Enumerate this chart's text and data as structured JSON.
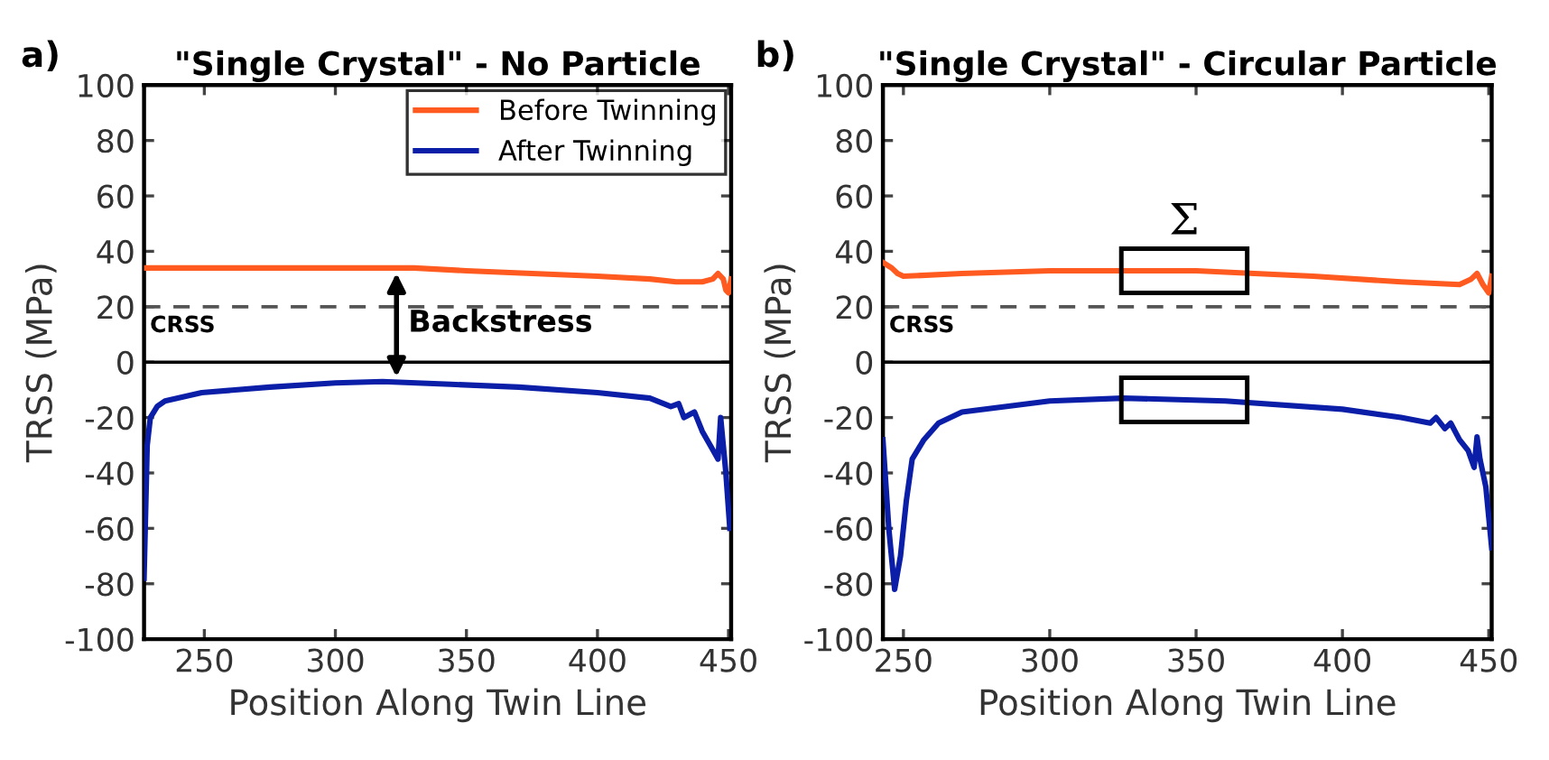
{
  "chart_data": [
    {
      "type": "line",
      "title": "\"Single Crystal\" - No Particle",
      "xlabel": "Position Along Twin Line",
      "ylabel": "TRSS (MPa)",
      "xlim": [
        227,
        451
      ],
      "xticks": [
        250,
        300,
        350,
        400,
        450
      ],
      "ylim": [
        -100,
        100
      ],
      "yticks": [
        -100,
        -80,
        -60,
        -40,
        -20,
        0,
        20,
        40,
        60,
        80,
        100
      ],
      "grid": false,
      "legend": "top right",
      "line_style": "solid",
      "marker": "none",
      "ref_lines": [
        {
          "axis": "y",
          "value": 20,
          "label": "CRSS",
          "color": "#555555",
          "line_style": "dashed"
        },
        {
          "axis": "y",
          "value": 0,
          "color": "#000000",
          "line_style": "solid"
        }
      ],
      "annotations": [
        "a)",
        "Backstress"
      ],
      "series": [
        {
          "name": "Before Twinning",
          "color": "#ff5a1f",
          "x": [
            227,
            240,
            270,
            300,
            330,
            350,
            375,
            400,
            420,
            430,
            440,
            444,
            446,
            448,
            449,
            450,
            451
          ],
          "values": [
            34,
            34,
            34,
            34,
            34,
            33,
            32,
            31,
            30,
            29,
            29,
            30,
            32,
            30,
            26,
            25,
            30
          ]
        },
        {
          "name": "After Twinning",
          "color": "#0b1ea8",
          "x": [
            227,
            228.2,
            229.4,
            232,
            235,
            249,
            275,
            300,
            318,
            344,
            370,
            400,
            420,
            428,
            431,
            433,
            437,
            440,
            443,
            446,
            447,
            448,
            449,
            450.5
          ],
          "values": [
            -78,
            -30,
            -20,
            -16,
            -14,
            -11,
            -9,
            -7.5,
            -7,
            -8,
            -9,
            -11,
            -13,
            -16,
            -15,
            -20,
            -18,
            -25,
            -30,
            -35,
            -20,
            -30,
            -40,
            -60
          ]
        }
      ]
    },
    {
      "type": "line",
      "title": "\"Single Crystal\" - Circular Particle",
      "xlabel": "Position Along Twin Line",
      "ylabel": "TRSS (MPa)",
      "xlim": [
        243,
        451
      ],
      "xticks": [
        250,
        300,
        350,
        400,
        450
      ],
      "ylim": [
        -100,
        100
      ],
      "yticks": [
        -100,
        -80,
        -60,
        -40,
        -20,
        0,
        20,
        40,
        60,
        80,
        100
      ],
      "grid": false,
      "line_style": "solid",
      "marker": "none",
      "ref_lines": [
        {
          "axis": "y",
          "value": 20,
          "label": "CRSS",
          "color": "#555555",
          "line_style": "dashed"
        },
        {
          "axis": "y",
          "value": 0,
          "color": "#000000",
          "line_style": "solid"
        }
      ],
      "annotations": [
        "b)",
        "Σ"
      ],
      "series": [
        {
          "color": "#ff5a1f",
          "x": [
            243,
            246,
            248,
            250,
            270,
            300,
            320,
            350,
            370,
            390,
            420,
            440,
            444,
            446,
            448,
            450,
            451
          ],
          "values": [
            36,
            34,
            32,
            31,
            32,
            33,
            33,
            33,
            32,
            31,
            29,
            28,
            30,
            32,
            28,
            25,
            31
          ]
        },
        {
          "color": "#0b1ea8",
          "x": [
            243,
            245,
            247,
            249,
            251,
            253,
            257,
            262,
            270,
            300,
            325,
            360,
            400,
            420,
            430,
            432,
            435,
            437,
            440,
            443,
            445,
            446,
            447,
            449,
            451
          ],
          "values": [
            -28,
            -60,
            -82,
            -70,
            -50,
            -35,
            -28,
            -22,
            -18,
            -14,
            -13,
            -14,
            -17,
            -20,
            -22,
            -20,
            -24,
            -22,
            -28,
            -32,
            -38,
            -27,
            -35,
            -45,
            -67
          ]
        }
      ]
    }
  ]
}
